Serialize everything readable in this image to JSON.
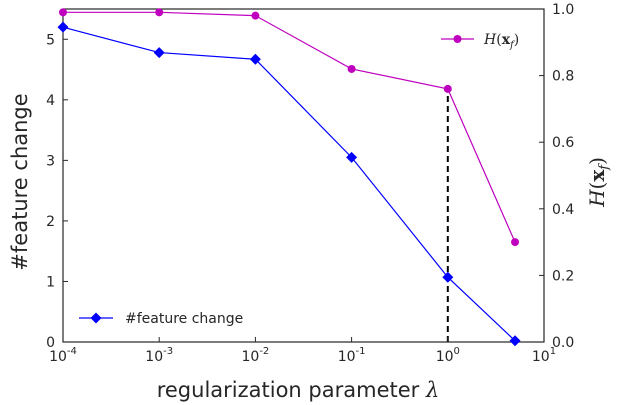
{
  "chart_data": {
    "type": "line",
    "title": "",
    "xlabel": "regularization parameter λ",
    "ylabel_left": "#feature change",
    "ylabel_right": "H(x_f)",
    "x_scale": "log",
    "x": [
      0.0001,
      0.001,
      0.01,
      0.1,
      1,
      5
    ],
    "xlim": [
      0.0001,
      10
    ],
    "x_ticks": [
      {
        "value": 0.0001,
        "base": "10",
        "exp": "-4"
      },
      {
        "value": 0.001,
        "base": "10",
        "exp": "-3"
      },
      {
        "value": 0.01,
        "base": "10",
        "exp": "-2"
      },
      {
        "value": 0.1,
        "base": "10",
        "exp": "-1"
      },
      {
        "value": 1,
        "base": "10",
        "exp": "0"
      },
      {
        "value": 10,
        "base": "10",
        "exp": "1"
      }
    ],
    "ylim_left": [
      0,
      5.5
    ],
    "y_ticks_left": [
      0,
      1,
      2,
      3,
      4,
      5
    ],
    "ylim_right": [
      0,
      1.0
    ],
    "y_ticks_right": [
      "0.0",
      "0.2",
      "0.4",
      "0.6",
      "0.8",
      "1.0"
    ],
    "grid": false,
    "series": [
      {
        "name": "#feature change",
        "axis": "left",
        "color": "#0000ff",
        "marker": "diamond",
        "values": [
          5.2,
          4.78,
          4.67,
          3.05,
          1.07,
          0.02
        ]
      },
      {
        "name": "H(x_f)",
        "axis": "right",
        "color": "#bf00bf",
        "marker": "circle",
        "values": [
          0.99,
          0.99,
          0.98,
          0.82,
          0.76,
          0.3
        ]
      }
    ],
    "vline": {
      "x": 1,
      "style": "dashed",
      "color": "#000000",
      "from_left_y": 0,
      "to_right_y": 0.76
    },
    "legend_left": {
      "placement": "lower-left",
      "label": "#feature change"
    },
    "legend_right": {
      "placement": "upper-right",
      "label": "H(x_f)"
    }
  }
}
